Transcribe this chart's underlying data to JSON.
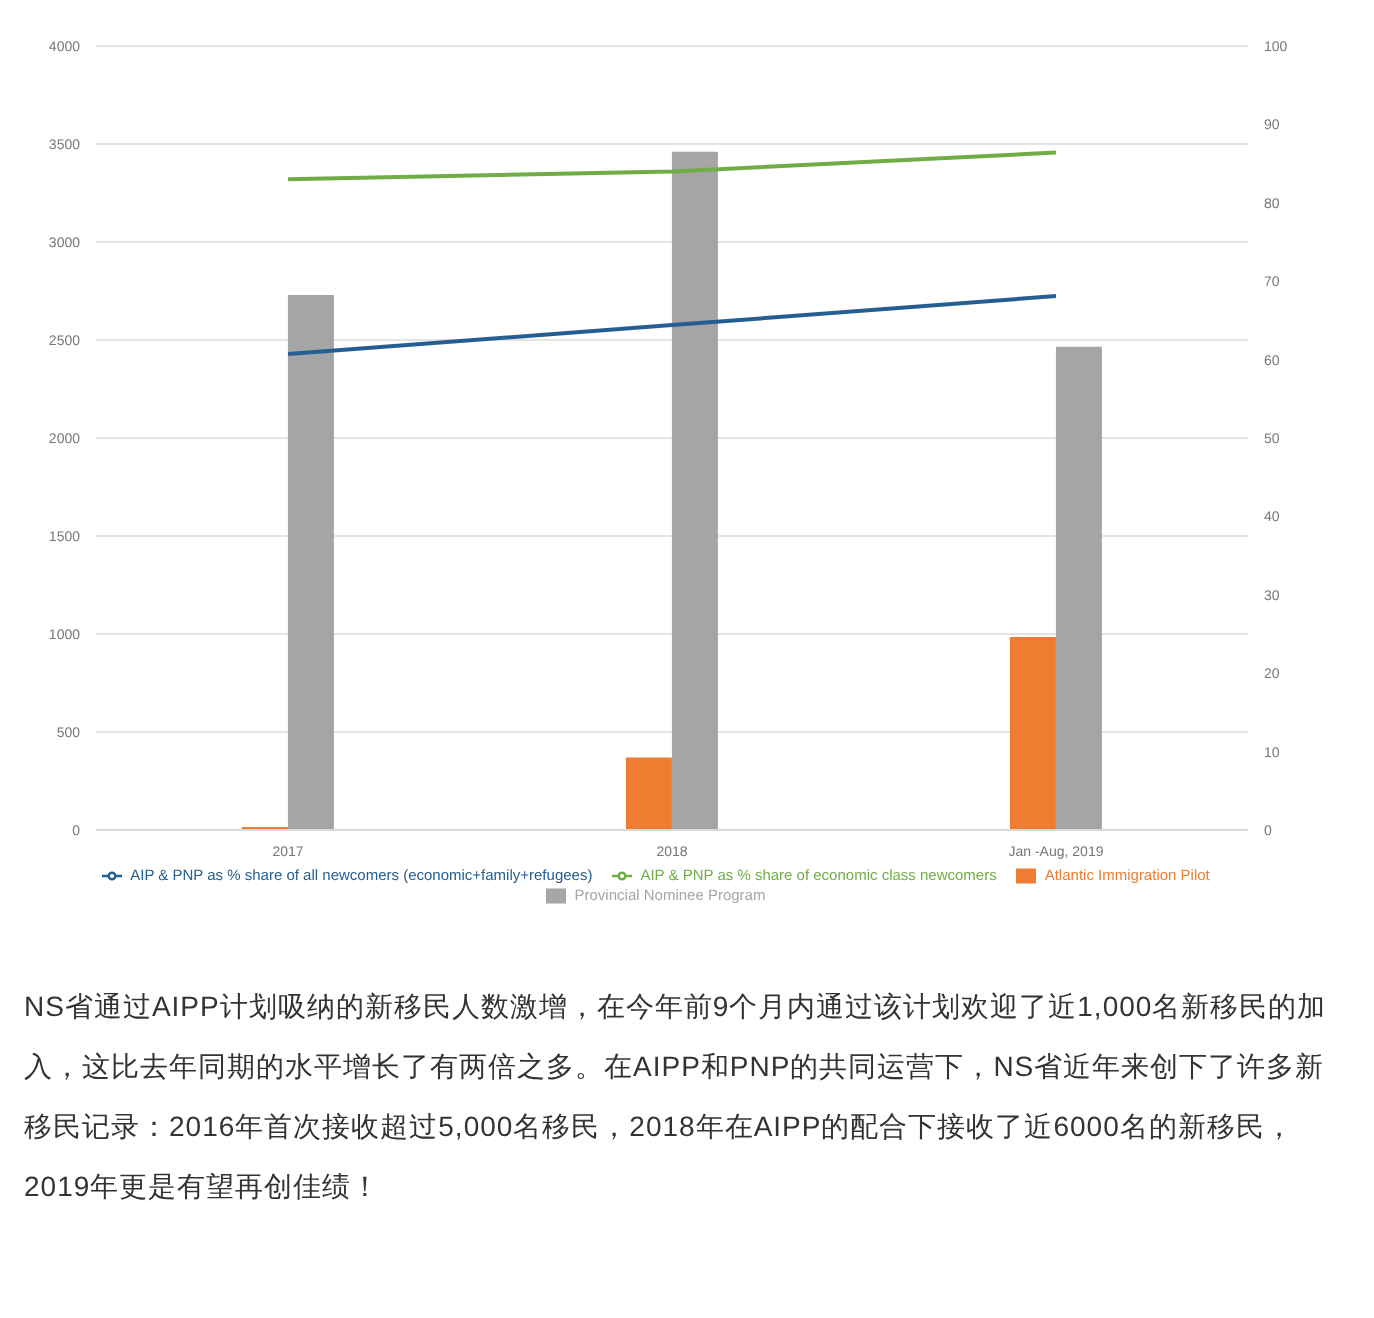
{
  "chart_data": {
    "type": "bar",
    "categories": [
      "2017",
      "2018",
      "Jan -Aug, 2019"
    ],
    "series": [
      {
        "name": "Atlantic Immigration Pilot",
        "color": "#ed7d31",
        "values": [
          15,
          370,
          985
        ]
      },
      {
        "name": "Provincial Nominee Program",
        "color": "#a5a5a5",
        "values": [
          2730,
          3460,
          2465
        ]
      },
      {
        "name": "AIP & PNP as % share of economic class newcomers",
        "type": "line",
        "axis": "y2",
        "color": "#70ad47",
        "values": [
          83,
          84,
          86.4
        ]
      },
      {
        "name": "AIP & PNP as % share of all newcomers (economic+family+refugees)",
        "type": "line",
        "axis": "y2",
        "color": "#255e91",
        "values": [
          60.7,
          64.4,
          68.1
        ]
      }
    ],
    "ylim": [
      0,
      4000
    ],
    "yticks": [
      0,
      500,
      1000,
      1500,
      2000,
      2500,
      3000,
      3500,
      4000
    ],
    "y2lim": [
      0,
      100
    ],
    "y2ticks": [
      0,
      10,
      20,
      30,
      40,
      50,
      60,
      70,
      80,
      90,
      100
    ],
    "grid": "y",
    "legend": "bottom",
    "marker": "none",
    "line_style": "solid",
    "annotations": [
      "NS省通过AIPP计划吸纳的新移民人数激增，在今年前9个月内通过该计划欢迎了近1,000名新移民的加入，这比去年同期的水平增长了有两倍之多。在AIPP和PNP的共同运营下，NS省近年来创下了许多新移民记录：2016年首次接收超过5,000名移民，2018年在AIPP的配合下接收了近6000名的新移民，2019年更是有望再创佳绩！"
    ]
  }
}
